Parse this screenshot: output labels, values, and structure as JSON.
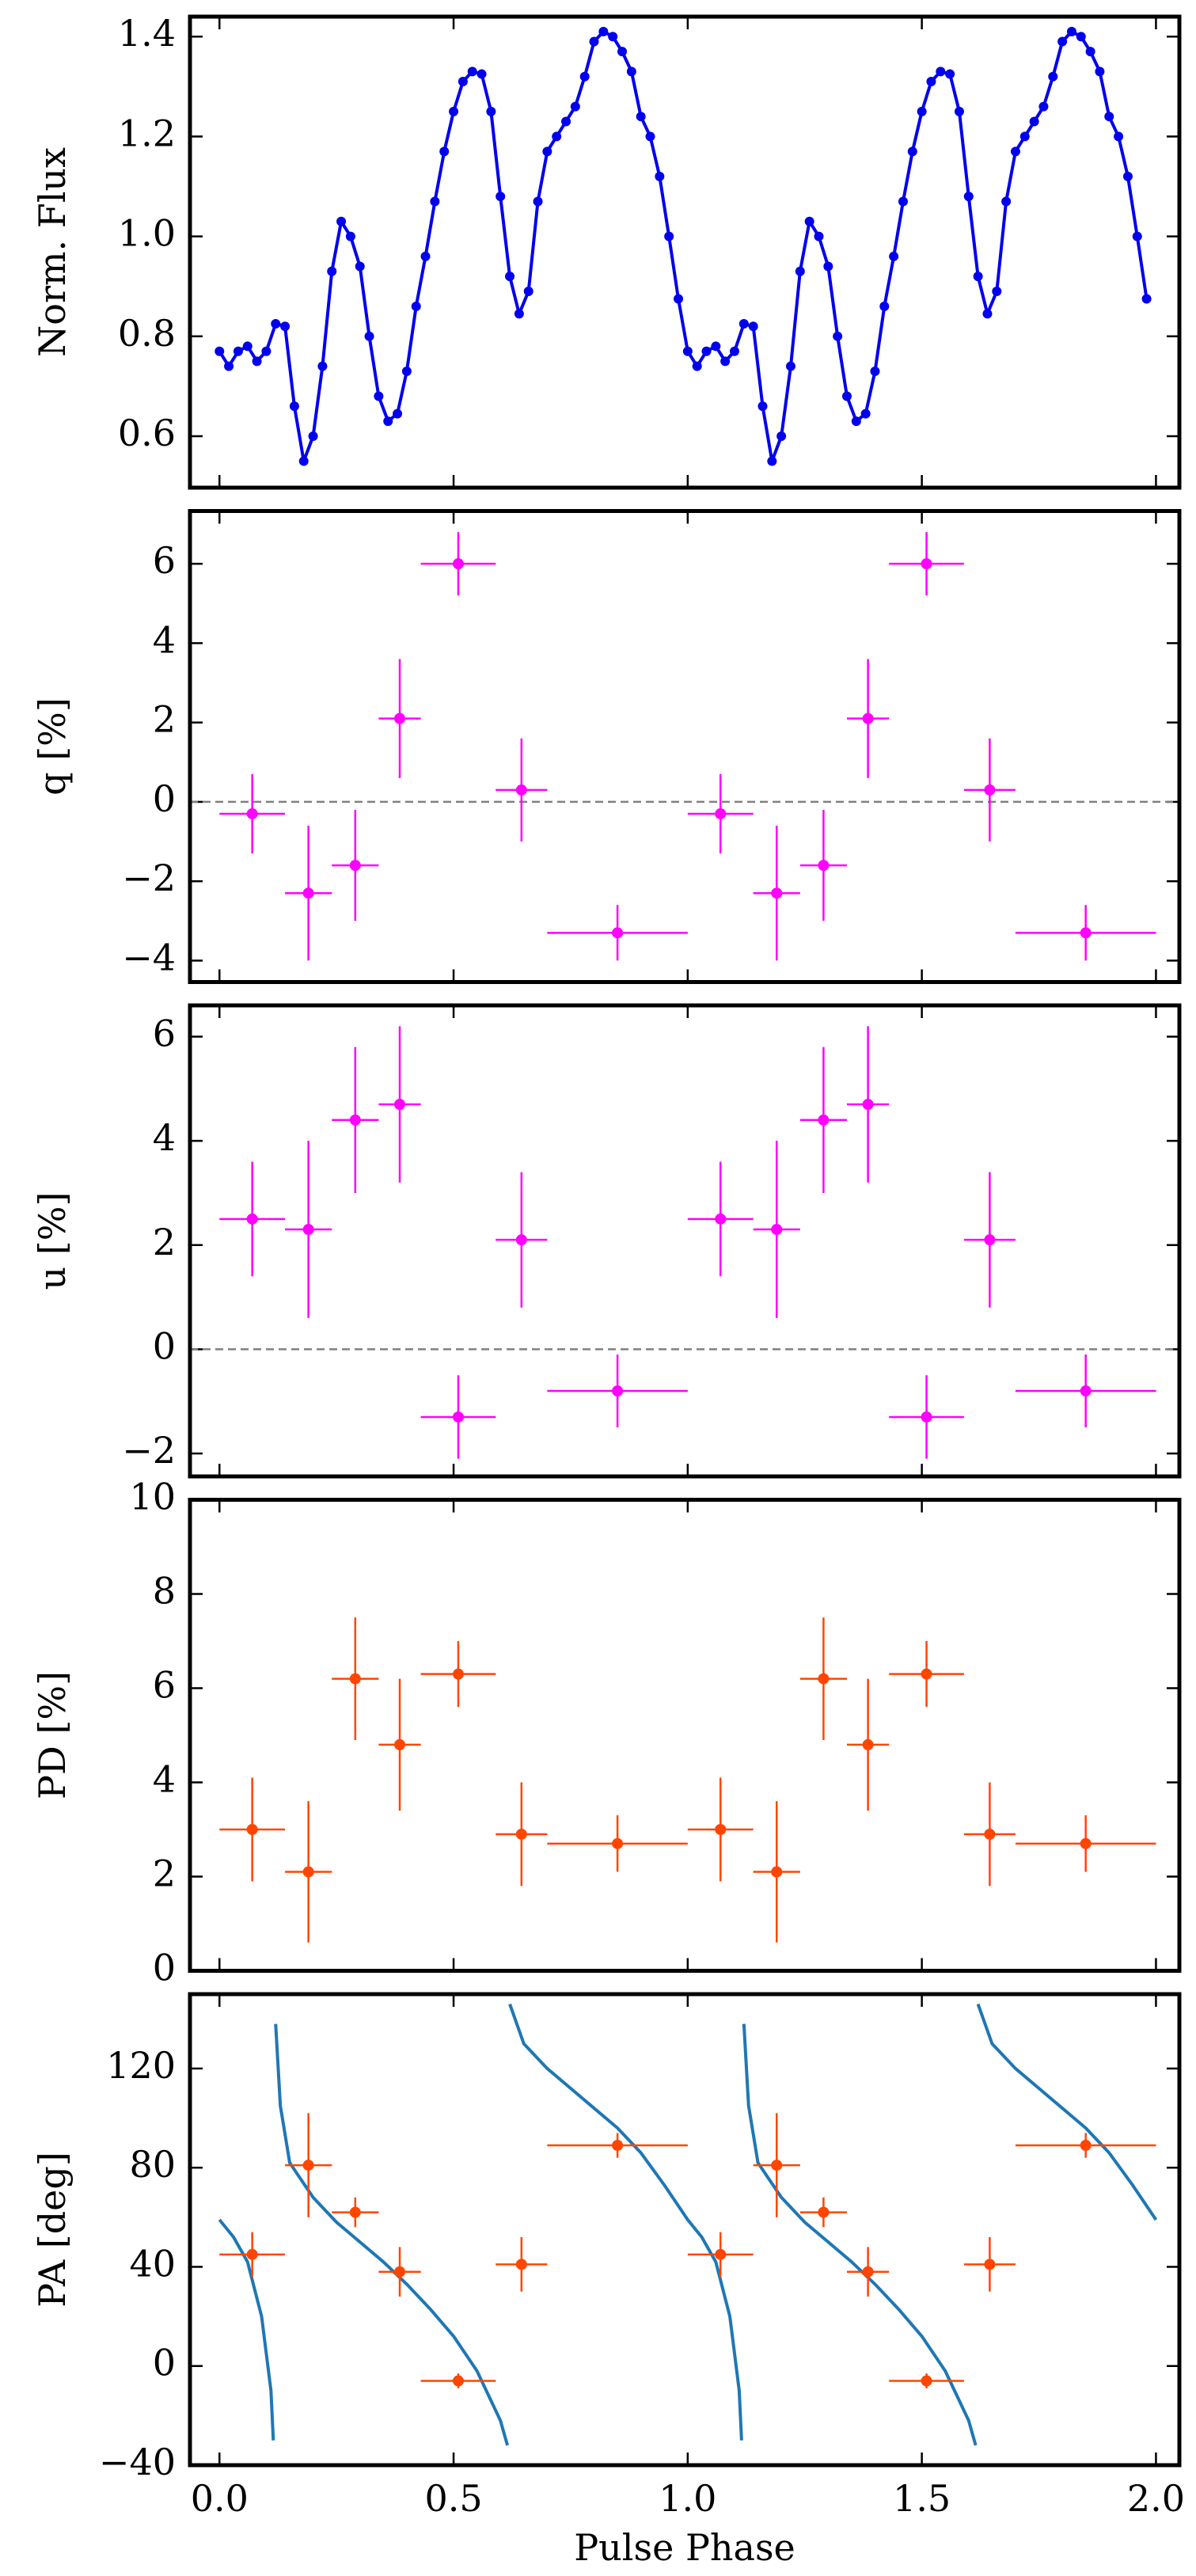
{
  "chart_data": [
    {
      "type": "line",
      "ylabel": "Norm. Flux",
      "xlim": [
        -0.063,
        2.05
      ],
      "xticks": [
        0,
        0.5,
        1,
        1.5,
        2
      ],
      "show_xticklabels": false,
      "ylim": [
        0.497,
        1.44
      ],
      "yticks": [
        0.6,
        0.8,
        {
          "value": 1,
          "label": "1.0"
        },
        1.2,
        1.4
      ],
      "series": [
        {
          "type": "line",
          "color": "#0000ee",
          "markers": true,
          "x": [
            0,
            0.02,
            0.04,
            0.06,
            0.08,
            0.1,
            0.12,
            0.14,
            0.16,
            0.18,
            0.2,
            0.22,
            0.24,
            0.26,
            0.28,
            0.3,
            0.32,
            0.34,
            0.36,
            0.38,
            0.4,
            0.42,
            0.44,
            0.46,
            0.48,
            0.5,
            0.52,
            0.54,
            0.56,
            0.58,
            0.6,
            0.62,
            0.64,
            0.66,
            0.68,
            0.7,
            0.72,
            0.74,
            0.76,
            0.78,
            0.8,
            0.82,
            0.84,
            0.86,
            0.88,
            0.9,
            0.92,
            0.94,
            0.96,
            0.98,
            1,
            1.02,
            1.04,
            1.06,
            1.08,
            1.1,
            1.12,
            1.14,
            1.16,
            1.18,
            1.2,
            1.22,
            1.24,
            1.26,
            1.28,
            1.3,
            1.32,
            1.34,
            1.36,
            1.38,
            1.4,
            1.42,
            1.44,
            1.46,
            1.48,
            1.5,
            1.52,
            1.54,
            1.56,
            1.58,
            1.6,
            1.62,
            1.64,
            1.66,
            1.68,
            1.7,
            1.72,
            1.74,
            1.76,
            1.78,
            1.8,
            1.82,
            1.84,
            1.86,
            1.88,
            1.9,
            1.92,
            1.94,
            1.96,
            1.98
          ],
          "values": [
            0.77,
            0.74,
            0.77,
            0.78,
            0.75,
            0.77,
            0.825,
            0.82,
            0.66,
            0.55,
            0.6,
            0.74,
            0.93,
            1.03,
            1.0,
            0.94,
            0.8,
            0.68,
            0.63,
            0.645,
            0.73,
            0.86,
            0.96,
            1.07,
            1.17,
            1.25,
            1.31,
            1.33,
            1.325,
            1.25,
            1.08,
            0.92,
            0.845,
            0.89,
            1.07,
            1.17,
            1.2,
            1.23,
            1.26,
            1.32,
            1.39,
            1.41,
            1.4,
            1.37,
            1.33,
            1.24,
            1.2,
            1.12,
            1.0,
            0.875,
            0.77,
            0.74,
            0.77,
            0.78,
            0.75,
            0.77,
            0.825,
            0.82,
            0.66,
            0.55,
            0.6,
            0.74,
            0.93,
            1.03,
            1.0,
            0.94,
            0.8,
            0.68,
            0.63,
            0.645,
            0.73,
            0.86,
            0.96,
            1.07,
            1.17,
            1.25,
            1.31,
            1.33,
            1.325,
            1.25,
            1.08,
            0.92,
            0.845,
            0.89,
            1.07,
            1.17,
            1.2,
            1.23,
            1.26,
            1.32,
            1.39,
            1.41,
            1.4,
            1.37,
            1.33,
            1.24,
            1.2,
            1.12,
            1.0,
            0.875
          ]
        }
      ]
    },
    {
      "type": "errorbar",
      "ylabel": "q [%]",
      "xlim": [
        -0.063,
        2.05
      ],
      "xticks": [
        0,
        0.5,
        1,
        1.5,
        2
      ],
      "show_xticklabels": false,
      "ylim": [
        -4.54,
        7.33
      ],
      "yticks": [
        {
          "value": -4,
          "label": "−4"
        },
        {
          "value": -2,
          "label": "−2"
        },
        0,
        2,
        4,
        6
      ],
      "hline": 0,
      "series": [
        {
          "type": "errorbar",
          "color": "#ff00ff",
          "x": [
            0.07,
            0.19,
            0.29,
            0.385,
            0.51,
            0.645,
            0.85,
            1.07,
            1.19,
            1.29,
            1.385,
            1.51,
            1.645,
            1.85
          ],
          "xerr": [
            0.07,
            0.05,
            0.05,
            0.045,
            0.08,
            0.055,
            0.15,
            0.07,
            0.05,
            0.05,
            0.045,
            0.08,
            0.055,
            0.15
          ],
          "values": [
            -0.3,
            -2.3,
            -1.6,
            2.1,
            6.0,
            0.3,
            -3.3,
            -0.3,
            -2.3,
            -1.6,
            2.1,
            6.0,
            0.3,
            -3.3
          ],
          "yerr": [
            1.0,
            1.7,
            1.4,
            1.5,
            0.8,
            1.3,
            0.7,
            1.0,
            1.7,
            1.4,
            1.5,
            0.8,
            1.3,
            0.7
          ]
        }
      ]
    },
    {
      "type": "errorbar",
      "ylabel": "u [%]",
      "xlim": [
        -0.063,
        2.05
      ],
      "xticks": [
        0,
        0.5,
        1,
        1.5,
        2
      ],
      "show_xticklabels": false,
      "ylim": [
        -2.44,
        6.6
      ],
      "yticks": [
        {
          "value": -2,
          "label": "−2"
        },
        0,
        2,
        4,
        6
      ],
      "hline": 0,
      "series": [
        {
          "type": "errorbar",
          "color": "#ff00ff",
          "x": [
            0.07,
            0.19,
            0.29,
            0.385,
            0.51,
            0.645,
            0.85,
            1.07,
            1.19,
            1.29,
            1.385,
            1.51,
            1.645,
            1.85
          ],
          "xerr": [
            0.07,
            0.05,
            0.05,
            0.045,
            0.08,
            0.055,
            0.15,
            0.07,
            0.05,
            0.05,
            0.045,
            0.08,
            0.055,
            0.15
          ],
          "values": [
            2.5,
            2.3,
            4.4,
            4.7,
            -1.3,
            2.1,
            -0.8,
            2.5,
            2.3,
            4.4,
            4.7,
            -1.3,
            2.1,
            -0.8
          ],
          "yerr": [
            1.1,
            1.7,
            1.4,
            1.5,
            0.8,
            1.3,
            0.7,
            1.1,
            1.7,
            1.4,
            1.5,
            0.8,
            1.3,
            0.7
          ]
        }
      ]
    },
    {
      "type": "errorbar",
      "ylabel": "PD [%]",
      "xlim": [
        -0.063,
        2.05
      ],
      "xticks": [
        0,
        0.5,
        1,
        1.5,
        2
      ],
      "show_xticklabels": false,
      "ylim": [
        0,
        10
      ],
      "yticks": [
        0,
        2,
        4,
        6,
        8,
        10
      ],
      "series": [
        {
          "type": "errorbar",
          "color": "#ff4500",
          "x": [
            0.07,
            0.19,
            0.29,
            0.385,
            0.51,
            0.645,
            0.85,
            1.07,
            1.19,
            1.29,
            1.385,
            1.51,
            1.645,
            1.85
          ],
          "xerr": [
            0.07,
            0.05,
            0.05,
            0.045,
            0.08,
            0.055,
            0.15,
            0.07,
            0.05,
            0.05,
            0.045,
            0.08,
            0.055,
            0.15
          ],
          "values": [
            3.0,
            2.1,
            6.2,
            4.8,
            6.3,
            2.9,
            2.7,
            3.0,
            2.1,
            6.2,
            4.8,
            6.3,
            2.9,
            2.7
          ],
          "yerr": [
            1.1,
            1.5,
            1.3,
            1.4,
            0.7,
            1.1,
            0.6,
            1.1,
            1.5,
            1.3,
            1.4,
            0.7,
            1.1,
            0.6
          ]
        }
      ]
    },
    {
      "type": "errorbar",
      "ylabel": "PA [deg]",
      "xlabel": "Pulse Phase",
      "xlim": [
        -0.063,
        2.05
      ],
      "xticks": [
        {
          "value": 0,
          "label": "0.0"
        },
        {
          "value": 0.5,
          "label": "0.5"
        },
        {
          "value": 1,
          "label": "1.0"
        },
        {
          "value": 1.5,
          "label": "1.5"
        },
        {
          "value": 2,
          "label": "2.0"
        }
      ],
      "show_xticklabels": true,
      "ylim": [
        -40,
        150
      ],
      "yticks": [
        {
          "value": -40,
          "label": "−40"
        },
        0,
        40,
        80,
        120
      ],
      "series": [
        {
          "type": "line",
          "color": "#1f77b4",
          "markers": false,
          "x": [
            0,
            0.03,
            0.06,
            0.09,
            0.11,
            0.115,
            null,
            0.12,
            0.13,
            0.15,
            0.2,
            0.25,
            0.3,
            0.35,
            0.4,
            0.45,
            0.5,
            0.55,
            0.6,
            0.615,
            null,
            0.62,
            0.65,
            0.7,
            0.75,
            0.8,
            0.85,
            0.9,
            0.95,
            1,
            1.03,
            1.06,
            1.09,
            1.11,
            1.115,
            null,
            1.12,
            1.13,
            1.15,
            1.2,
            1.25,
            1.3,
            1.35,
            1.4,
            1.45,
            1.5,
            1.55,
            1.6,
            1.615,
            null,
            1.62,
            1.65,
            1.7,
            1.75,
            1.8,
            1.85,
            1.9,
            1.95,
            2
          ],
          "values": [
            59,
            52,
            42,
            20,
            -10,
            -30,
            null,
            138,
            105,
            82,
            68,
            58,
            50,
            42,
            33,
            23,
            12,
            -2,
            -22,
            -32,
            null,
            146,
            130,
            120,
            112,
            104,
            96,
            86,
            73,
            59,
            52,
            42,
            20,
            -10,
            -30,
            null,
            138,
            105,
            82,
            68,
            58,
            50,
            42,
            33,
            23,
            12,
            -2,
            -22,
            -32,
            null,
            146,
            130,
            120,
            112,
            104,
            96,
            86,
            73,
            59
          ]
        },
        {
          "type": "errorbar",
          "color": "#ff4500",
          "x": [
            0.07,
            0.19,
            0.29,
            0.385,
            0.51,
            0.645,
            0.85,
            1.07,
            1.19,
            1.29,
            1.385,
            1.51,
            1.645,
            1.85
          ],
          "xerr": [
            0.07,
            0.05,
            0.05,
            0.045,
            0.08,
            0.055,
            0.15,
            0.07,
            0.05,
            0.05,
            0.045,
            0.08,
            0.055,
            0.15
          ],
          "values": [
            45,
            81,
            62,
            38,
            -6,
            41,
            89,
            45,
            81,
            62,
            38,
            -6,
            41,
            89
          ],
          "yerr": [
            9,
            21,
            6,
            10,
            3,
            11,
            5,
            9,
            21,
            6,
            10,
            3,
            11,
            5
          ]
        }
      ]
    }
  ]
}
